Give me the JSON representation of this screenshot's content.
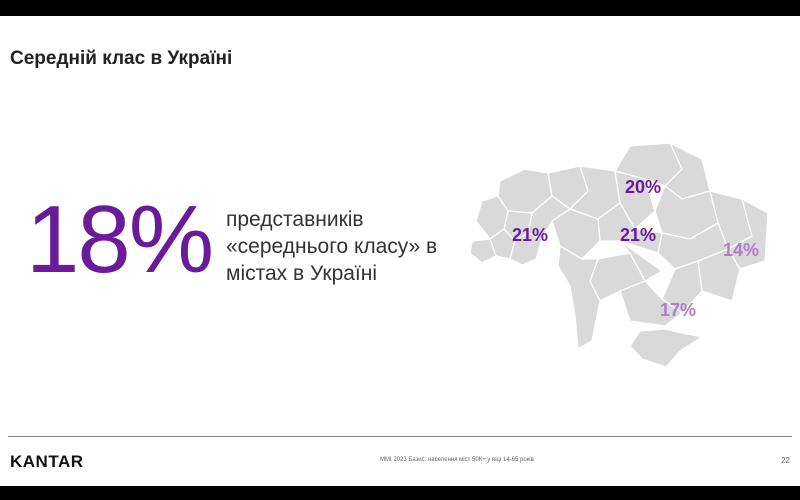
{
  "slide": {
    "title": "Середній клас в Україні",
    "headline_value": "18%",
    "description_lines": [
      "представників",
      "«середнього класу» в",
      "містах в Україні"
    ]
  },
  "map": {
    "regions": [
      {
        "name": "north",
        "label": "20%",
        "color": "#6a1b9a"
      },
      {
        "name": "west",
        "label": "21%",
        "color": "#6a1b9a"
      },
      {
        "name": "center",
        "label": "21%",
        "color": "#6a1b9a"
      },
      {
        "name": "east",
        "label": "14%",
        "color": "#b07cc6"
      },
      {
        "name": "south",
        "label": "17%",
        "color": "#b07cc6"
      }
    ],
    "fill_color": "#d9d9d9",
    "border_color": "#ffffff"
  },
  "footer": {
    "logo": "KANTAR",
    "note": "MMI 2023 Базис: населення міст 50К+ у віці 14-65 років",
    "page_number": "22"
  },
  "colors": {
    "accent_dark": "#6a1b9a",
    "accent_light": "#b07cc6"
  }
}
